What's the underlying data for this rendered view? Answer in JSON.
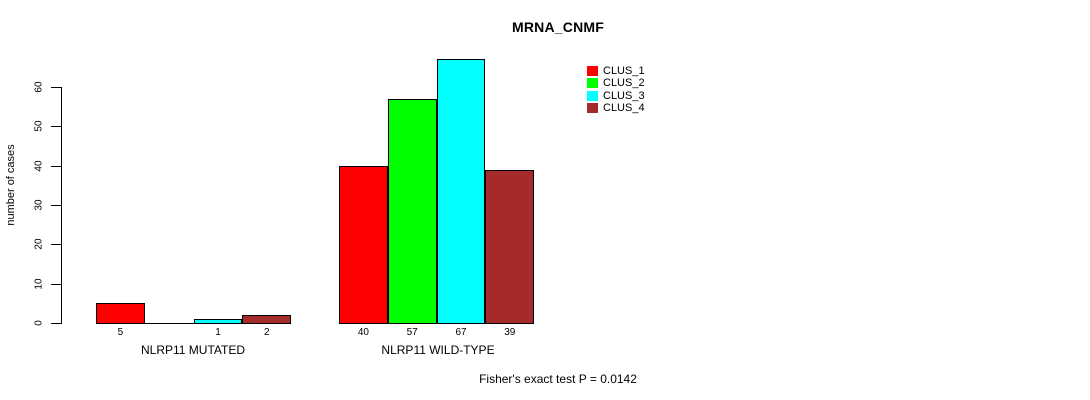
{
  "title": "MRNA_CNMF",
  "y_axis": {
    "label": "number of cases",
    "ticks": [
      0,
      10,
      20,
      30,
      40,
      50,
      60
    ]
  },
  "footer": "Fisher's exact test P = 0.0142",
  "legend": {
    "position": "top-right",
    "items": [
      {
        "label": "CLUS_1",
        "color": "#FF0000"
      },
      {
        "label": "CLUS_2",
        "color": "#00FF00"
      },
      {
        "label": "CLUS_3",
        "color": "#00FFFF"
      },
      {
        "label": "CLUS_4",
        "color": "#A52A2A"
      }
    ]
  },
  "chart_data": {
    "type": "bar",
    "title": "MRNA_CNMF",
    "xlabel": "",
    "ylabel": "number of cases",
    "categories": [
      "NLRP11 MUTATED",
      "NLRP11 WILD-TYPE"
    ],
    "series": [
      {
        "name": "CLUS_1",
        "color": "#FF0000",
        "values": [
          5,
          40
        ]
      },
      {
        "name": "CLUS_2",
        "color": "#00FF00",
        "values": [
          0,
          57
        ]
      },
      {
        "name": "CLUS_3",
        "color": "#00FFFF",
        "values": [
          1,
          67
        ]
      },
      {
        "name": "CLUS_4",
        "color": "#A52A2A",
        "values": [
          2,
          39
        ]
      }
    ],
    "ylim": [
      0,
      67
    ],
    "yticks": [
      0,
      10,
      20,
      30,
      40,
      50,
      60
    ],
    "grid": false,
    "legend_position": "top-right",
    "bar_value_labels": "shown under each bar; zero values show no label",
    "annotation": "Fisher's exact test P = 0.0142"
  }
}
